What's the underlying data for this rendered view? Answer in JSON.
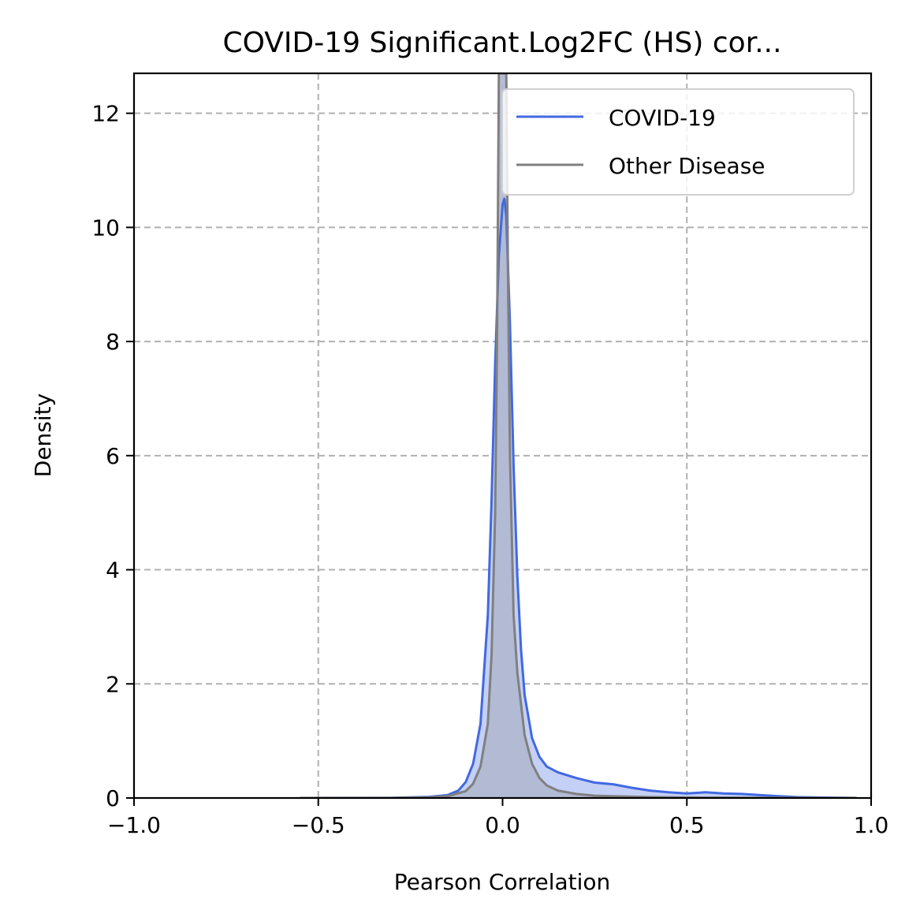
{
  "chart_data": {
    "type": "area",
    "title": "COVID-19 Significant.Log2FC (HS) cor...",
    "xlabel": "Pearson Correlation",
    "ylabel": "Density",
    "xlim": [
      -1.0,
      1.0
    ],
    "ylim": [
      0,
      12.7
    ],
    "xticks": [
      -1.0,
      -0.5,
      0.0,
      0.5,
      1.0
    ],
    "xtick_labels": [
      "−1.0",
      "−0.5",
      "0.0",
      "0.5",
      "1.0"
    ],
    "yticks": [
      0,
      2,
      4,
      6,
      8,
      10,
      12
    ],
    "ytick_labels": [
      "0",
      "2",
      "4",
      "6",
      "8",
      "10",
      "12"
    ],
    "grid": true,
    "legend": {
      "position": "top-right"
    },
    "series": [
      {
        "name": "COVID-19",
        "color": "#4169e1",
        "fill": "#c4d0f5",
        "x": [
          -0.55,
          -0.3,
          -0.2,
          -0.15,
          -0.12,
          -0.1,
          -0.08,
          -0.06,
          -0.04,
          -0.03,
          -0.02,
          -0.01,
          0.0,
          0.005,
          0.01,
          0.02,
          0.03,
          0.04,
          0.05,
          0.06,
          0.08,
          0.1,
          0.12,
          0.15,
          0.2,
          0.25,
          0.3,
          0.35,
          0.4,
          0.45,
          0.5,
          0.55,
          0.6,
          0.65,
          0.7,
          0.75,
          0.8,
          0.9,
          0.96
        ],
        "y": [
          0.0,
          0.003,
          0.02,
          0.05,
          0.13,
          0.28,
          0.6,
          1.3,
          3.2,
          5.2,
          7.6,
          9.5,
          10.4,
          10.5,
          10.2,
          8.3,
          5.8,
          3.9,
          2.6,
          1.8,
          1.05,
          0.72,
          0.55,
          0.45,
          0.35,
          0.27,
          0.24,
          0.18,
          0.13,
          0.1,
          0.08,
          0.1,
          0.08,
          0.07,
          0.05,
          0.03,
          0.015,
          0.005,
          0.002
        ]
      },
      {
        "name": "Other Disease",
        "color": "#808080",
        "fill": "#b0b7d0",
        "x": [
          -0.55,
          -0.3,
          -0.2,
          -0.15,
          -0.1,
          -0.08,
          -0.06,
          -0.04,
          -0.03,
          -0.02,
          -0.015,
          -0.01,
          -0.005,
          0.0,
          0.005,
          0.01,
          0.015,
          0.02,
          0.03,
          0.04,
          0.06,
          0.08,
          0.1,
          0.12,
          0.15,
          0.2,
          0.25,
          0.3,
          0.4,
          0.5,
          0.7,
          0.96
        ],
        "y": [
          0.0,
          0.002,
          0.01,
          0.03,
          0.12,
          0.25,
          0.55,
          1.3,
          2.5,
          5.0,
          8.0,
          12.7,
          12.7,
          12.7,
          12.7,
          12.7,
          9.0,
          6.0,
          3.2,
          2.2,
          1.1,
          0.6,
          0.35,
          0.22,
          0.13,
          0.07,
          0.04,
          0.03,
          0.015,
          0.008,
          0.003,
          0.0
        ]
      }
    ]
  }
}
